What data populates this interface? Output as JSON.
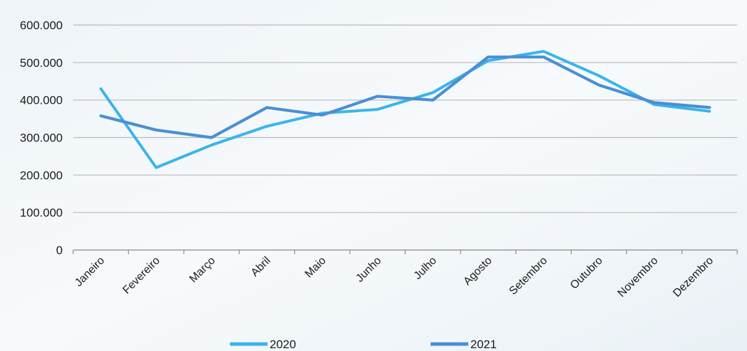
{
  "chart_data": {
    "type": "line",
    "categories": [
      "Janeiro",
      "Fevereiro",
      "Março",
      "Abril",
      "Maio",
      "Junho",
      "Julho",
      "Agosto",
      "Setembro",
      "Outubro",
      "Novembro",
      "Dezembro"
    ],
    "series": [
      {
        "name": "2020",
        "color": "#3ab4ec",
        "values": [
          430000,
          220000,
          280000,
          330000,
          365000,
          375000,
          420000,
          505000,
          530000,
          465000,
          388000,
          370000
        ]
      },
      {
        "name": "2021",
        "color": "#4a8fd6",
        "values": [
          358000,
          320000,
          300000,
          380000,
          360000,
          410000,
          400000,
          515000,
          515000,
          440000,
          393000,
          380000
        ]
      }
    ],
    "y_ticks": [
      "0",
      "100.000",
      "200.000",
      "300.000",
      "400.000",
      "500.000",
      "600.000"
    ],
    "y_tick_values": [
      0,
      100000,
      200000,
      300000,
      400000,
      500000,
      600000
    ],
    "ylim": [
      0,
      600000
    ],
    "grid": true,
    "legend_position": "bottom",
    "title": "",
    "xlabel": "",
    "ylabel": ""
  }
}
